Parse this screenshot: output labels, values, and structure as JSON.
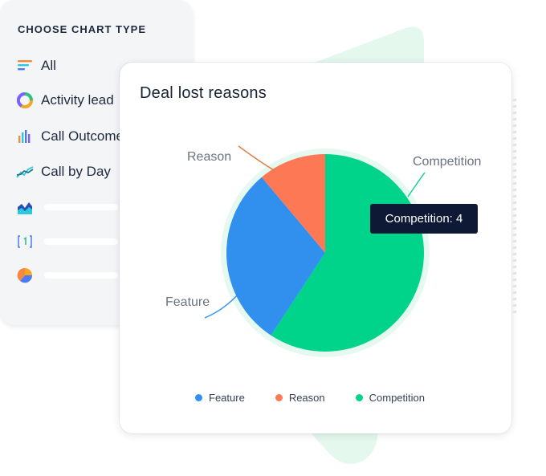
{
  "panel": {
    "title": "CHOOSE CHART TYPE",
    "items": [
      {
        "label": "All",
        "icon": "filter-lines-icon"
      },
      {
        "label": "Activity lead",
        "icon": "donut-chart-icon"
      },
      {
        "label": "Call Outcome",
        "icon": "bar-chart-icon"
      },
      {
        "label": "Call by Day",
        "icon": "line-chart-icon"
      },
      {
        "label": "",
        "icon": "area-chart-icon"
      },
      {
        "label": "",
        "icon": "number-card-icon"
      },
      {
        "label": "",
        "icon": "pie-chart-icon"
      }
    ]
  },
  "card": {
    "title": "Deal lost reasons",
    "tooltip": "Competition: 4"
  },
  "chart_data": {
    "type": "pie",
    "title": "Deal lost reasons",
    "categories": [
      "Competition",
      "Feature",
      "Reason"
    ],
    "values": [
      4,
      2,
      0.75
    ],
    "colors": [
      "#00d48b",
      "#3190ee",
      "#fd7956"
    ],
    "legend": {
      "placement": "bottom",
      "order": [
        "Feature",
        "Reason",
        "Competition"
      ]
    }
  }
}
